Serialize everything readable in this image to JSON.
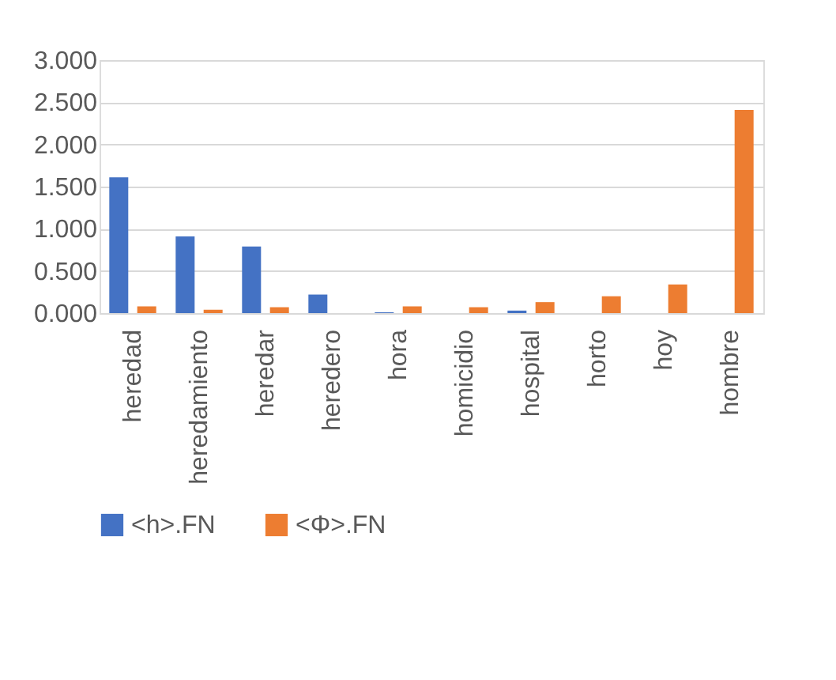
{
  "chart_data": {
    "type": "bar",
    "categories": [
      "heredad",
      "heredamiento",
      "heredar",
      "heredero",
      "hora",
      "homicidio",
      "hospital",
      "horto",
      "hoy",
      "hombre"
    ],
    "series": [
      {
        "name": "<h>.FN",
        "color": "#4472c4",
        "values": [
          1.61,
          0.91,
          0.79,
          0.22,
          0.01,
          0,
          0.03,
          0,
          0,
          0
        ]
      },
      {
        "name": "<Φ>.FN",
        "color": "#ed7d31",
        "values": [
          0.08,
          0.04,
          0.07,
          0,
          0.08,
          0.07,
          0.13,
          0.2,
          0.34,
          2.41
        ]
      }
    ],
    "ylim": [
      0,
      3
    ],
    "yticks": [
      {
        "value": 0,
        "label": "0.000"
      },
      {
        "value": 0.5,
        "label": "0.500"
      },
      {
        "value": 1,
        "label": "1.000"
      },
      {
        "value": 1.5,
        "label": "1.500"
      },
      {
        "value": 2,
        "label": "2.000"
      },
      {
        "value": 2.5,
        "label": "2.500"
      },
      {
        "value": 3,
        "label": "3.000"
      }
    ],
    "grid": "y",
    "legend": "bottom"
  }
}
